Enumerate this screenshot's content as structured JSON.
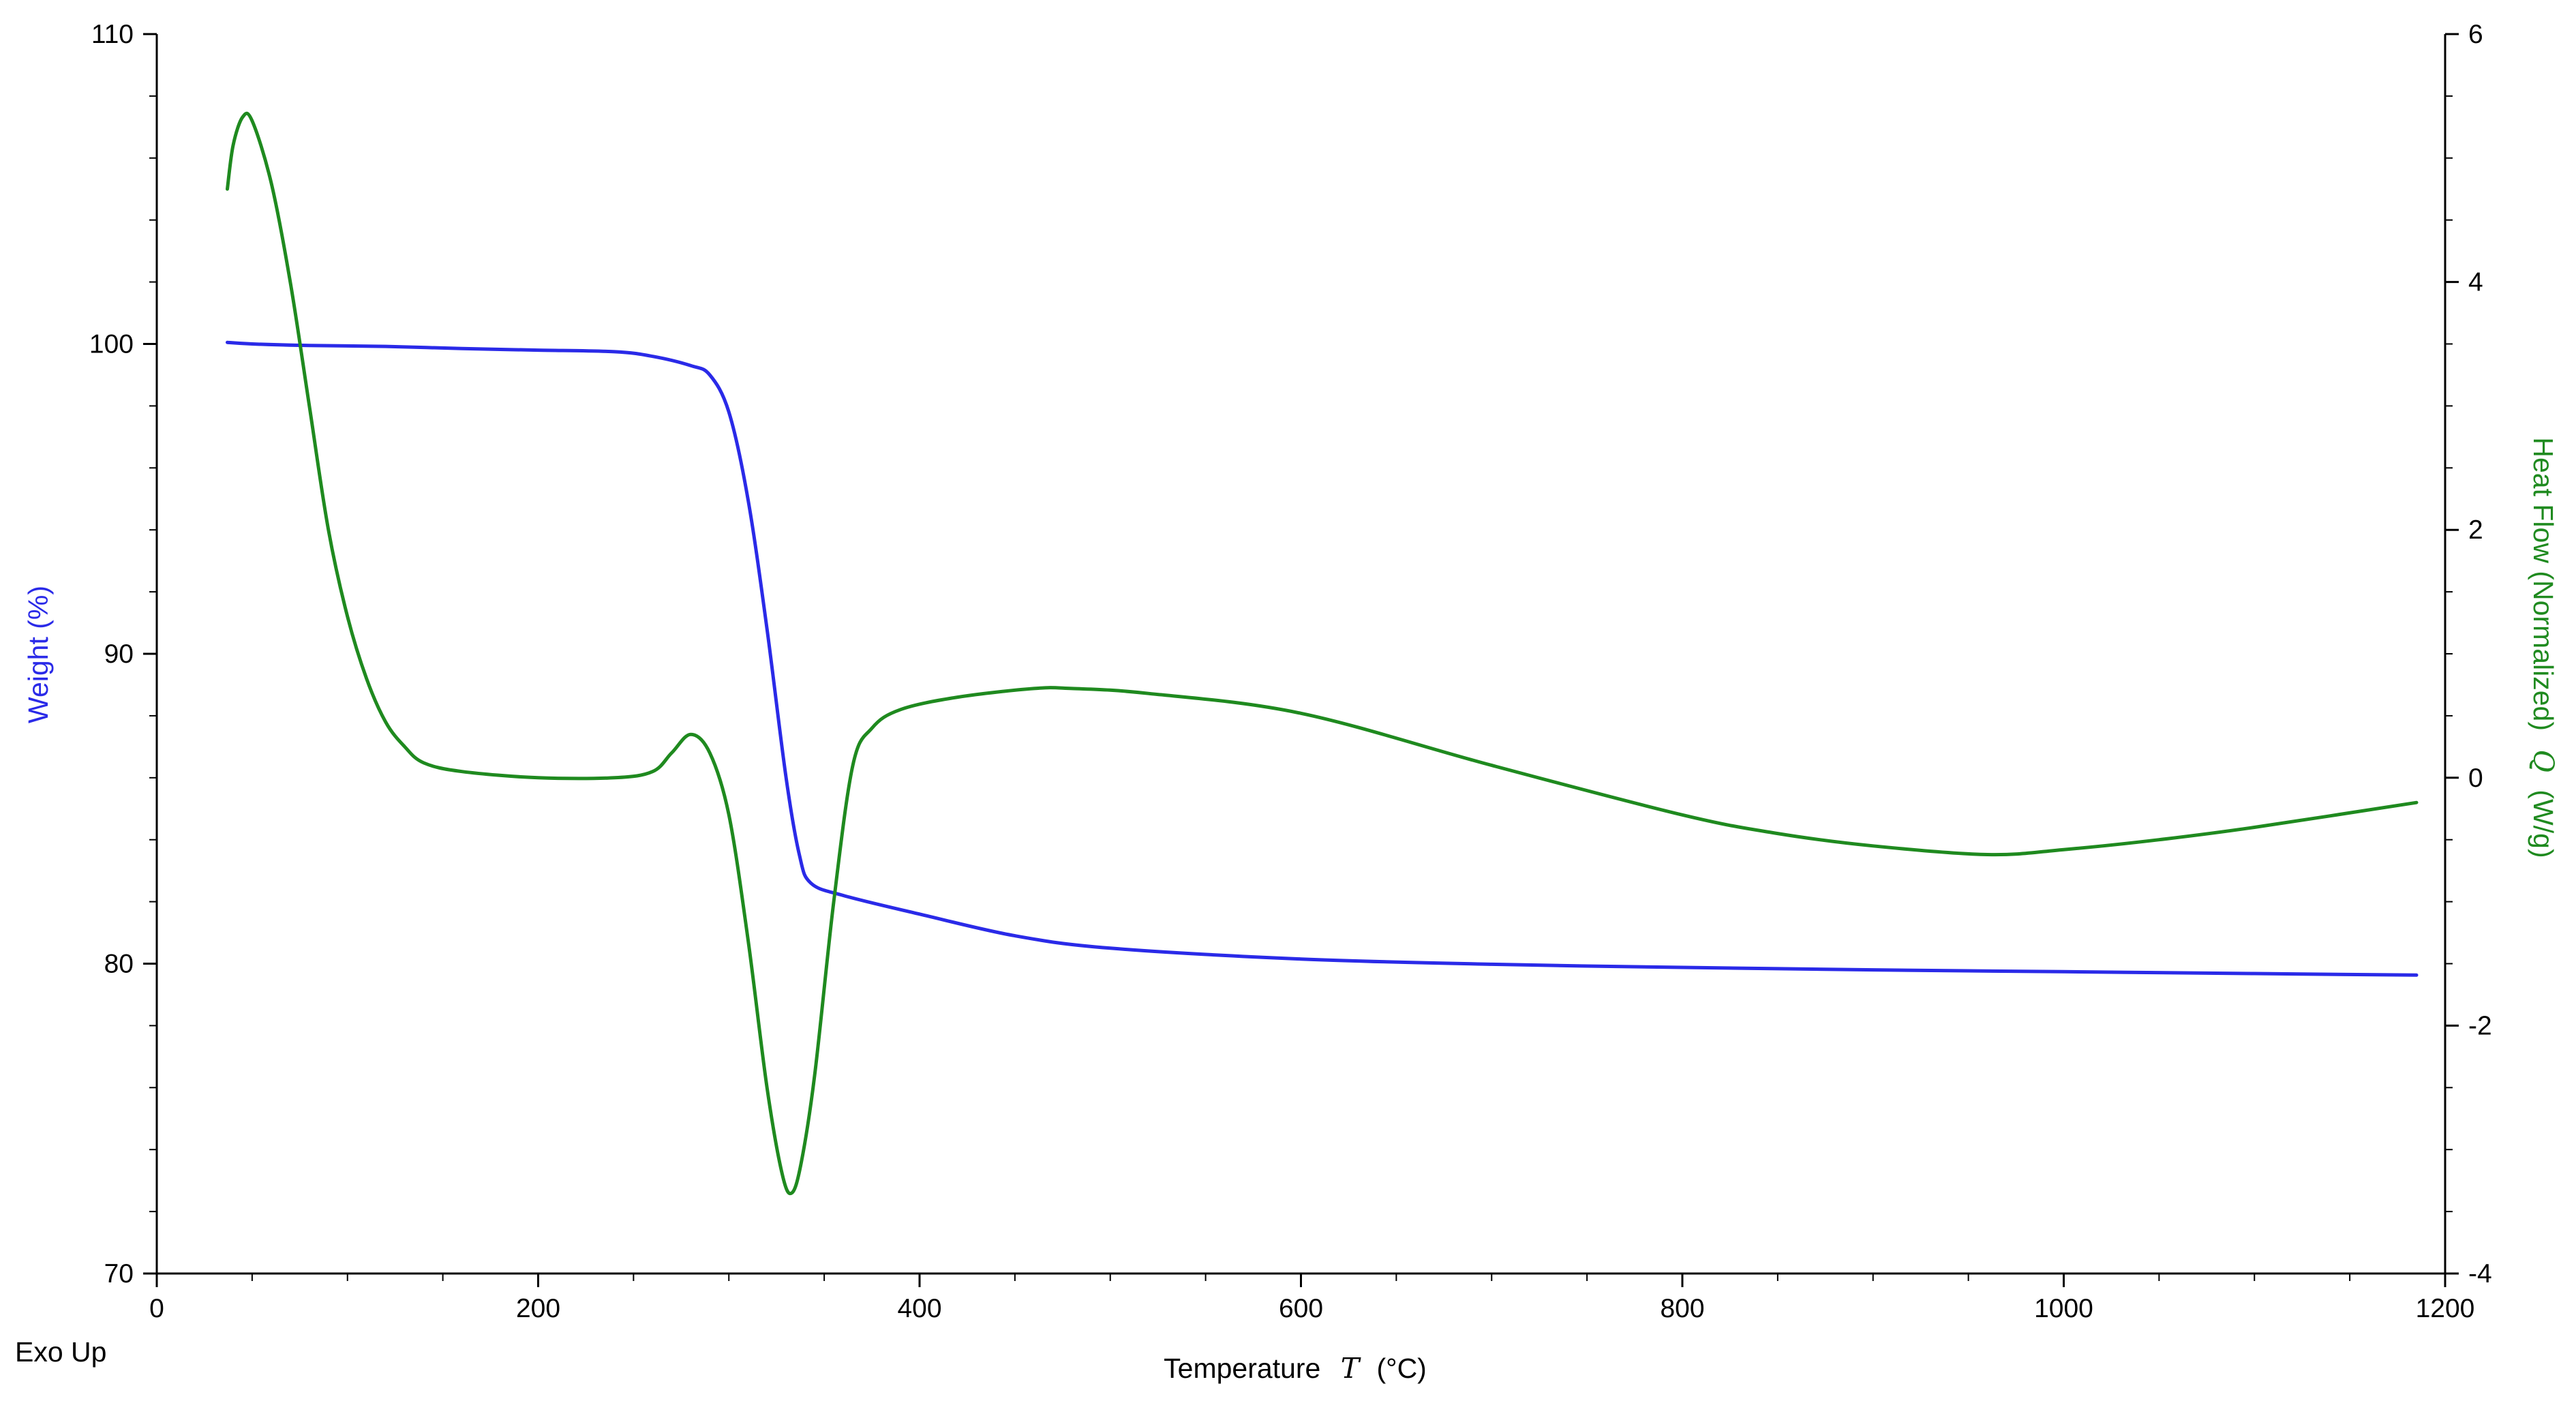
{
  "chart_data": {
    "type": "line",
    "xlabel": "Temperature",
    "xlabel_symbol": "T",
    "xlabel_unit": "(°C)",
    "ylabel_left": "Weight (%)",
    "ylabel_right": "Heat Flow (Normalized)",
    "ylabel_right_symbol": "Q",
    "ylabel_right_unit": "(W/g)",
    "corner_note": "Exo Up",
    "xlim": [
      0,
      1200
    ],
    "ylim_left": [
      70,
      110
    ],
    "ylim_right": [
      -4,
      6
    ],
    "x_ticks": [
      "0",
      "200",
      "400",
      "600",
      "800",
      "1000",
      "1200"
    ],
    "y_left_ticks": [
      "70",
      "80",
      "90",
      "100",
      "110"
    ],
    "y_right_ticks": [
      "-4",
      "-2",
      "0",
      "2",
      "4",
      "6"
    ],
    "grid": false,
    "legend": "none",
    "colors": {
      "weight": "#2a2ae8",
      "heat_flow": "#1f8a1f",
      "axis": "#000000"
    },
    "series": [
      {
        "axis": "left",
        "color": "#2a2ae8",
        "points": [
          [
            37,
            100.05
          ],
          [
            50,
            100.0
          ],
          [
            80,
            99.95
          ],
          [
            120,
            99.92
          ],
          [
            160,
            99.85
          ],
          [
            200,
            99.8
          ],
          [
            240,
            99.75
          ],
          [
            260,
            99.6
          ],
          [
            280,
            99.3
          ],
          [
            290,
            99.0
          ],
          [
            300,
            97.8
          ],
          [
            310,
            95.0
          ],
          [
            320,
            90.8
          ],
          [
            330,
            86.0
          ],
          [
            337,
            83.5
          ],
          [
            343,
            82.6
          ],
          [
            360,
            82.2
          ],
          [
            400,
            81.6
          ],
          [
            450,
            80.9
          ],
          [
            500,
            80.5
          ],
          [
            600,
            80.15
          ],
          [
            700,
            79.98
          ],
          [
            800,
            79.88
          ],
          [
            900,
            79.8
          ],
          [
            1000,
            79.74
          ],
          [
            1100,
            79.68
          ],
          [
            1185,
            79.63
          ]
        ]
      },
      {
        "axis": "right",
        "color": "#1f8a1f",
        "points": [
          [
            37,
            4.75
          ],
          [
            40,
            5.1
          ],
          [
            45,
            5.33
          ],
          [
            50,
            5.3
          ],
          [
            60,
            4.8
          ],
          [
            70,
            4.0
          ],
          [
            80,
            3.0
          ],
          [
            90,
            2.0
          ],
          [
            100,
            1.3
          ],
          [
            110,
            0.8
          ],
          [
            120,
            0.45
          ],
          [
            130,
            0.25
          ],
          [
            140,
            0.12
          ],
          [
            160,
            0.05
          ],
          [
            200,
            0.0
          ],
          [
            240,
            0.0
          ],
          [
            260,
            0.05
          ],
          [
            270,
            0.2
          ],
          [
            280,
            0.35
          ],
          [
            290,
            0.2
          ],
          [
            300,
            -0.3
          ],
          [
            310,
            -1.3
          ],
          [
            320,
            -2.5
          ],
          [
            328,
            -3.2
          ],
          [
            333,
            -3.35
          ],
          [
            338,
            -3.1
          ],
          [
            345,
            -2.4
          ],
          [
            355,
            -1.0
          ],
          [
            365,
            0.1
          ],
          [
            375,
            0.4
          ],
          [
            390,
            0.55
          ],
          [
            420,
            0.65
          ],
          [
            460,
            0.72
          ],
          [
            480,
            0.72
          ],
          [
            520,
            0.68
          ],
          [
            600,
            0.52
          ],
          [
            700,
            0.1
          ],
          [
            800,
            -0.3
          ],
          [
            850,
            -0.45
          ],
          [
            900,
            -0.55
          ],
          [
            960,
            -0.62
          ],
          [
            1000,
            -0.58
          ],
          [
            1050,
            -0.5
          ],
          [
            1100,
            -0.4
          ],
          [
            1185,
            -0.2
          ]
        ]
      }
    ]
  }
}
